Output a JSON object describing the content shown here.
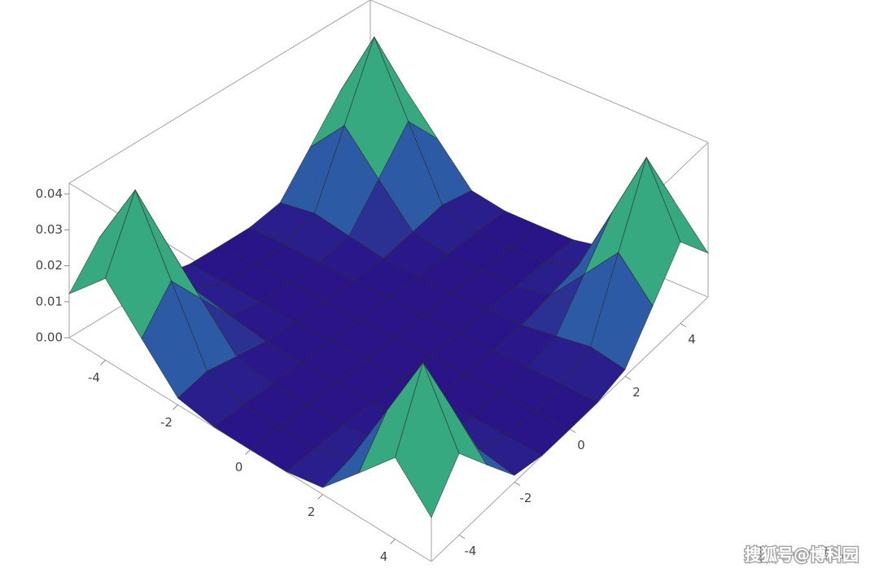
{
  "chart_data": {
    "type": "surface3d",
    "x": [
      -5,
      -4,
      -3,
      -2,
      -1,
      0,
      1,
      2,
      3,
      4,
      5
    ],
    "y": [
      -5,
      -4,
      -3,
      -2,
      -1,
      0,
      1,
      2,
      3,
      4,
      5
    ],
    "z": [
      [
        0.0122,
        0.0227,
        0.0122,
        0.0019,
        0.0001,
        0,
        0.0001,
        0.0019,
        0.0122,
        0.0227,
        0.0122
      ],
      [
        0.0227,
        0.042,
        0.0227,
        0.0036,
        0.0002,
        0,
        0.0002,
        0.0036,
        0.0227,
        0.042,
        0.0227
      ],
      [
        0.0122,
        0.0227,
        0.0122,
        0.0019,
        0.0001,
        0,
        0.0001,
        0.0019,
        0.0122,
        0.0227,
        0.0122
      ],
      [
        0.0019,
        0.0036,
        0.0019,
        0.0003,
        0,
        0,
        0,
        0.0003,
        0.0019,
        0.0036,
        0.0019
      ],
      [
        0.0001,
        0.0002,
        0.0001,
        0,
        0,
        0,
        0,
        0,
        0.0001,
        0.0002,
        0.0001
      ],
      [
        0,
        0,
        0,
        0,
        0,
        0,
        0,
        0,
        0,
        0,
        0
      ],
      [
        0.0001,
        0.0002,
        0.0001,
        0,
        0,
        0,
        0,
        0,
        0.0001,
        0.0002,
        0.0001
      ],
      [
        0.0019,
        0.0036,
        0.0019,
        0.0003,
        0,
        0,
        0,
        0.0003,
        0.0019,
        0.0036,
        0.0019
      ],
      [
        0.0122,
        0.0227,
        0.0122,
        0.0019,
        0.0001,
        0,
        0.0001,
        0.0019,
        0.0122,
        0.0227,
        0.0122
      ],
      [
        0.0227,
        0.042,
        0.0227,
        0.0036,
        0.0002,
        0,
        0.0002,
        0.0036,
        0.0227,
        0.042,
        0.0227
      ],
      [
        0.0122,
        0.0227,
        0.0122,
        0.0019,
        0.0001,
        0,
        0.0001,
        0.0019,
        0.0122,
        0.0227,
        0.0122
      ]
    ],
    "xlim": [
      -5,
      5
    ],
    "ylim": [
      -5,
      5
    ],
    "zlim": [
      0,
      0.043
    ],
    "xticks": [
      -4,
      -2,
      0,
      2,
      4
    ],
    "yticks": [
      -4,
      -2,
      0,
      2,
      4
    ],
    "zticks": [
      {
        "value": 0,
        "label": "0.00"
      },
      0.01,
      0.02,
      0.03,
      0.04
    ],
    "colormap": [
      "#2a1488",
      "#2d5fa6",
      "#1f9a8a",
      "#6cc86a",
      "#eef064"
    ],
    "mesh": true,
    "watermark": "搜狐号@博科园"
  }
}
